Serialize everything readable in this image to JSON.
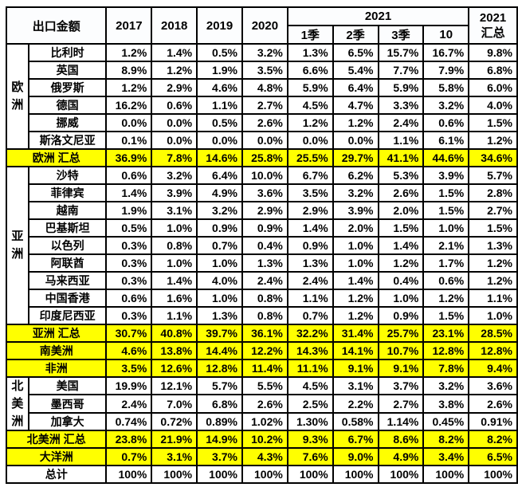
{
  "chart_data": {
    "type": "table",
    "title": "出口金额",
    "header": {
      "corner": "出口金额",
      "years": [
        "2017",
        "2018",
        "2019",
        "2020"
      ],
      "group2021": "2021",
      "subcols": [
        "1季",
        "2季",
        "3季",
        "10"
      ],
      "total_line1": "2021",
      "total_line2": "汇总"
    },
    "colors": {
      "highlight": "#ffff00",
      "border": "#000000",
      "text": "#000000",
      "background": "#ffffff"
    },
    "columns": [
      "2017",
      "2018",
      "2019",
      "2020",
      "2021-1季",
      "2021-2季",
      "2021-3季",
      "2021-10",
      "2021 汇总"
    ],
    "rows": [
      {
        "type": "country",
        "group": "欧洲",
        "group_span": 6,
        "label": "比利时",
        "values": [
          "1.2%",
          "1.4%",
          "0.5%",
          "3.2%",
          "1.3%",
          "6.5%",
          "15.7%",
          "16.7%",
          "9.8%"
        ]
      },
      {
        "type": "country",
        "label": "英国",
        "values": [
          "8.9%",
          "1.2%",
          "1.9%",
          "3.5%",
          "6.6%",
          "5.4%",
          "7.7%",
          "7.9%",
          "6.8%"
        ]
      },
      {
        "type": "country",
        "label": "俄罗斯",
        "values": [
          "1.2%",
          "2.9%",
          "4.6%",
          "4.8%",
          "5.9%",
          "6.4%",
          "5.9%",
          "5.8%",
          "6.0%"
        ]
      },
      {
        "type": "country",
        "label": "德国",
        "values": [
          "16.2%",
          "0.6%",
          "1.1%",
          "2.7%",
          "4.5%",
          "4.7%",
          "3.3%",
          "3.2%",
          "4.0%"
        ]
      },
      {
        "type": "country",
        "label": "挪威",
        "values": [
          "0.0%",
          "0.0%",
          "0.5%",
          "2.6%",
          "1.2%",
          "1.2%",
          "2.4%",
          "0.6%",
          "1.5%"
        ]
      },
      {
        "type": "country",
        "label": "斯洛文尼亚",
        "values": [
          "0.1%",
          "0.0%",
          "0.0%",
          "0.0%",
          "0.0%",
          "0.0%",
          "1.1%",
          "6.1%",
          "1.2%"
        ]
      },
      {
        "type": "summary",
        "label": "欧洲 汇总",
        "values": [
          "36.9%",
          "7.8%",
          "14.6%",
          "25.8%",
          "25.5%",
          "29.7%",
          "41.1%",
          "44.6%",
          "34.6%"
        ]
      },
      {
        "type": "country",
        "group": "亚洲",
        "group_span": 9,
        "label": "沙特",
        "values": [
          "0.6%",
          "3.2%",
          "6.4%",
          "10.0%",
          "6.7%",
          "6.2%",
          "5.3%",
          "3.9%",
          "5.7%"
        ]
      },
      {
        "type": "country",
        "label": "菲律宾",
        "values": [
          "1.4%",
          "3.9%",
          "4.9%",
          "3.6%",
          "3.5%",
          "3.2%",
          "2.6%",
          "1.5%",
          "2.8%"
        ]
      },
      {
        "type": "country",
        "label": "越南",
        "values": [
          "1.9%",
          "3.1%",
          "3.2%",
          "2.9%",
          "2.9%",
          "3.9%",
          "2.0%",
          "1.5%",
          "2.7%"
        ]
      },
      {
        "type": "country",
        "label": "巴基斯坦",
        "values": [
          "0.5%",
          "1.0%",
          "0.9%",
          "0.9%",
          "1.4%",
          "2.0%",
          "1.5%",
          "1.0%",
          "1.5%"
        ]
      },
      {
        "type": "country",
        "label": "以色列",
        "values": [
          "0.3%",
          "0.8%",
          "0.7%",
          "0.4%",
          "0.9%",
          "1.0%",
          "1.4%",
          "2.1%",
          "1.3%"
        ]
      },
      {
        "type": "country",
        "label": "阿联酋",
        "values": [
          "0.3%",
          "1.0%",
          "1.0%",
          "1.3%",
          "1.3%",
          "1.0%",
          "1.2%",
          "1.7%",
          "1.2%"
        ]
      },
      {
        "type": "country",
        "label": "马来西亚",
        "values": [
          "0.3%",
          "1.4%",
          "4.0%",
          "2.4%",
          "2.4%",
          "1.4%",
          "0.4%",
          "0.6%",
          "1.2%"
        ]
      },
      {
        "type": "country",
        "label": "中国香港",
        "values": [
          "0.6%",
          "1.6%",
          "1.0%",
          "0.8%",
          "1.1%",
          "1.2%",
          "1.0%",
          "1.2%",
          "1.1%"
        ]
      },
      {
        "type": "country",
        "label": "印度尼西亚",
        "values": [
          "0.3%",
          "1.1%",
          "1.3%",
          "0.8%",
          "0.7%",
          "1.2%",
          "0.9%",
          "1.5%",
          "1.0%"
        ]
      },
      {
        "type": "summary",
        "label": "亚洲 汇总",
        "values": [
          "30.7%",
          "40.8%",
          "39.7%",
          "36.1%",
          "32.2%",
          "31.4%",
          "25.7%",
          "23.1%",
          "28.5%"
        ]
      },
      {
        "type": "summary",
        "label": "南美洲",
        "values": [
          "4.6%",
          "13.8%",
          "14.4%",
          "12.2%",
          "14.3%",
          "14.1%",
          "10.7%",
          "12.8%",
          "12.8%"
        ]
      },
      {
        "type": "summary",
        "label": "非洲",
        "values": [
          "3.5%",
          "12.6%",
          "12.8%",
          "11.4%",
          "11.1%",
          "9.1%",
          "9.1%",
          "7.8%",
          "9.4%"
        ]
      },
      {
        "type": "country",
        "group": "北美洲",
        "group_span": 3,
        "label": "美国",
        "values": [
          "19.9%",
          "12.1%",
          "5.7%",
          "5.5%",
          "4.5%",
          "3.1%",
          "3.7%",
          "3.2%",
          "3.6%"
        ]
      },
      {
        "type": "country",
        "label": "墨西哥",
        "values": [
          "2.4%",
          "7.0%",
          "6.8%",
          "2.6%",
          "2.5%",
          "2.2%",
          "2.7%",
          "3.8%",
          "2.6%"
        ]
      },
      {
        "type": "country",
        "label": "加拿大",
        "values": [
          "0.74%",
          "0.72%",
          "0.89%",
          "1.02%",
          "1.30%",
          "0.58%",
          "1.14%",
          "0.45%",
          "0.91%"
        ]
      },
      {
        "type": "summary",
        "label": "北美洲 汇总",
        "values": [
          "23.8%",
          "21.9%",
          "14.9%",
          "10.2%",
          "9.3%",
          "6.7%",
          "8.6%",
          "8.2%",
          "8.2%"
        ]
      },
      {
        "type": "summary",
        "label": "大洋洲",
        "values": [
          "0.7%",
          "3.1%",
          "3.7%",
          "4.3%",
          "7.6%",
          "9.0%",
          "4.9%",
          "3.4%",
          "6.5%"
        ]
      },
      {
        "type": "total",
        "label": "总计",
        "values": [
          "100%",
          "100%",
          "100%",
          "100%",
          "100%",
          "100%",
          "100%",
          "100%",
          "100%"
        ]
      }
    ]
  }
}
